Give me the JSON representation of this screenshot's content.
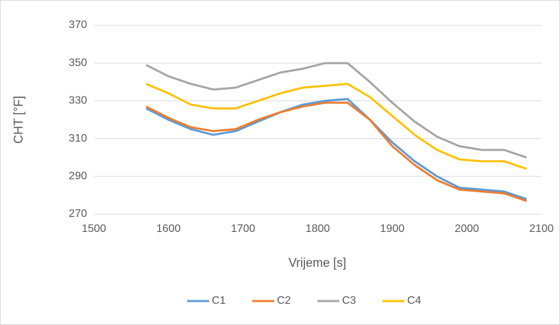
{
  "chart_data": {
    "type": "line",
    "x_label": "Vrijeme [s]",
    "y_label": "CHT [°F]",
    "x": [
      1570,
      1600,
      1630,
      1660,
      1690,
      1720,
      1750,
      1780,
      1810,
      1840,
      1870,
      1900,
      1930,
      1960,
      1990,
      2020,
      2050,
      2080
    ],
    "series": [
      {
        "name": "C1",
        "color": "#5b9bd5",
        "values": [
          326,
          320,
          315,
          312,
          314,
          319,
          324,
          328,
          330,
          331,
          320,
          308,
          298,
          290,
          284,
          283,
          282,
          278
        ]
      },
      {
        "name": "C2",
        "color": "#ed7d31",
        "values": [
          327,
          321,
          316,
          314,
          315,
          320,
          324,
          327,
          329,
          329,
          320,
          306,
          296,
          288,
          283,
          282,
          281,
          277
        ]
      },
      {
        "name": "C3",
        "color": "#a5a5a5",
        "values": [
          349,
          343,
          339,
          336,
          337,
          341,
          345,
          347,
          350,
          350,
          340,
          329,
          319,
          311,
          306,
          304,
          304,
          300
        ]
      },
      {
        "name": "C4",
        "color": "#ffc000",
        "values": [
          339,
          334,
          328,
          326,
          326,
          330,
          334,
          337,
          338,
          339,
          332,
          322,
          312,
          304,
          299,
          298,
          298,
          294
        ]
      }
    ],
    "xlim": [
      1500,
      2100
    ],
    "xticks": [
      1500,
      1600,
      1700,
      1800,
      1900,
      2000,
      2100
    ],
    "ylim": [
      270,
      370
    ],
    "yticks": [
      270,
      290,
      310,
      330,
      350,
      370
    ],
    "grid": true,
    "legend": "bottom"
  }
}
